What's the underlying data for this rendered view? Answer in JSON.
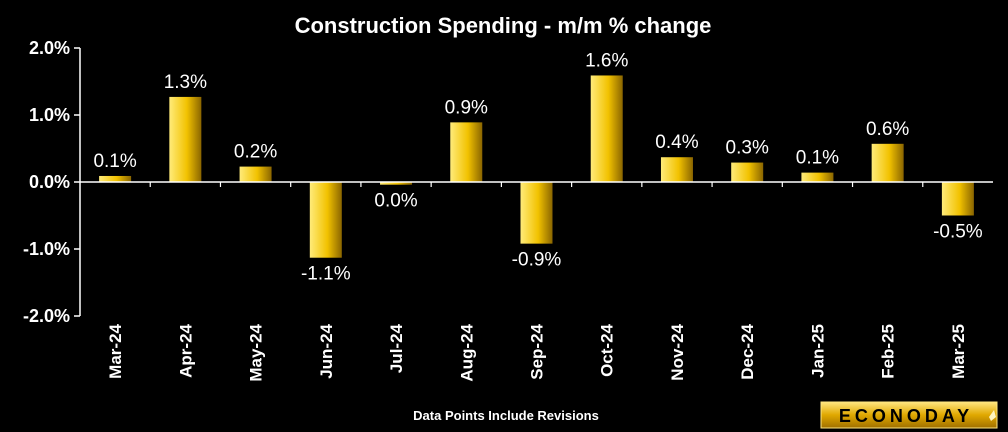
{
  "chart_data": {
    "type": "bar",
    "title": "Construction Spending - m/m % change",
    "categories": [
      "Mar-24",
      "Apr-24",
      "May-24",
      "Jun-24",
      "Jul-24",
      "Aug-24",
      "Sep-24",
      "Oct-24",
      "Nov-24",
      "Dec-24",
      "Jan-25",
      "Feb-25",
      "Mar-25"
    ],
    "values": [
      0.1,
      1.3,
      0.2,
      -1.1,
      0.0,
      0.9,
      -0.9,
      1.6,
      0.4,
      0.3,
      0.1,
      0.6,
      -0.5
    ],
    "bar_heights": [
      0.09,
      1.27,
      0.23,
      -1.13,
      -0.04,
      0.89,
      -0.92,
      1.59,
      0.37,
      0.29,
      0.14,
      0.57,
      -0.5
    ],
    "data_labels": [
      "0.1%",
      "1.3%",
      "0.2%",
      "-1.1%",
      "0.0%",
      "0.9%",
      "-0.9%",
      "1.6%",
      "0.4%",
      "0.3%",
      "0.1%",
      "0.6%",
      "-0.5%"
    ],
    "y_ticks": [
      2.0,
      1.0,
      0.0,
      -1.0,
      -2.0
    ],
    "y_tick_labels": [
      "2.0%",
      "1.0%",
      "0.0%",
      "-1.0%",
      "-2.0%"
    ],
    "ylim": [
      -2.0,
      2.0
    ],
    "xlabel": "",
    "ylabel": "",
    "grid": false,
    "legend": "none",
    "bar_color": "#F2C200"
  },
  "footnote": "Data Points Include Revisions",
  "brand": "ECONODAY",
  "colors": {
    "background": "#000000",
    "bar_light": "#FFE066",
    "bar_mid": "#F2C200",
    "bar_dark": "#7A5A00",
    "text": "#FFFFFF"
  }
}
